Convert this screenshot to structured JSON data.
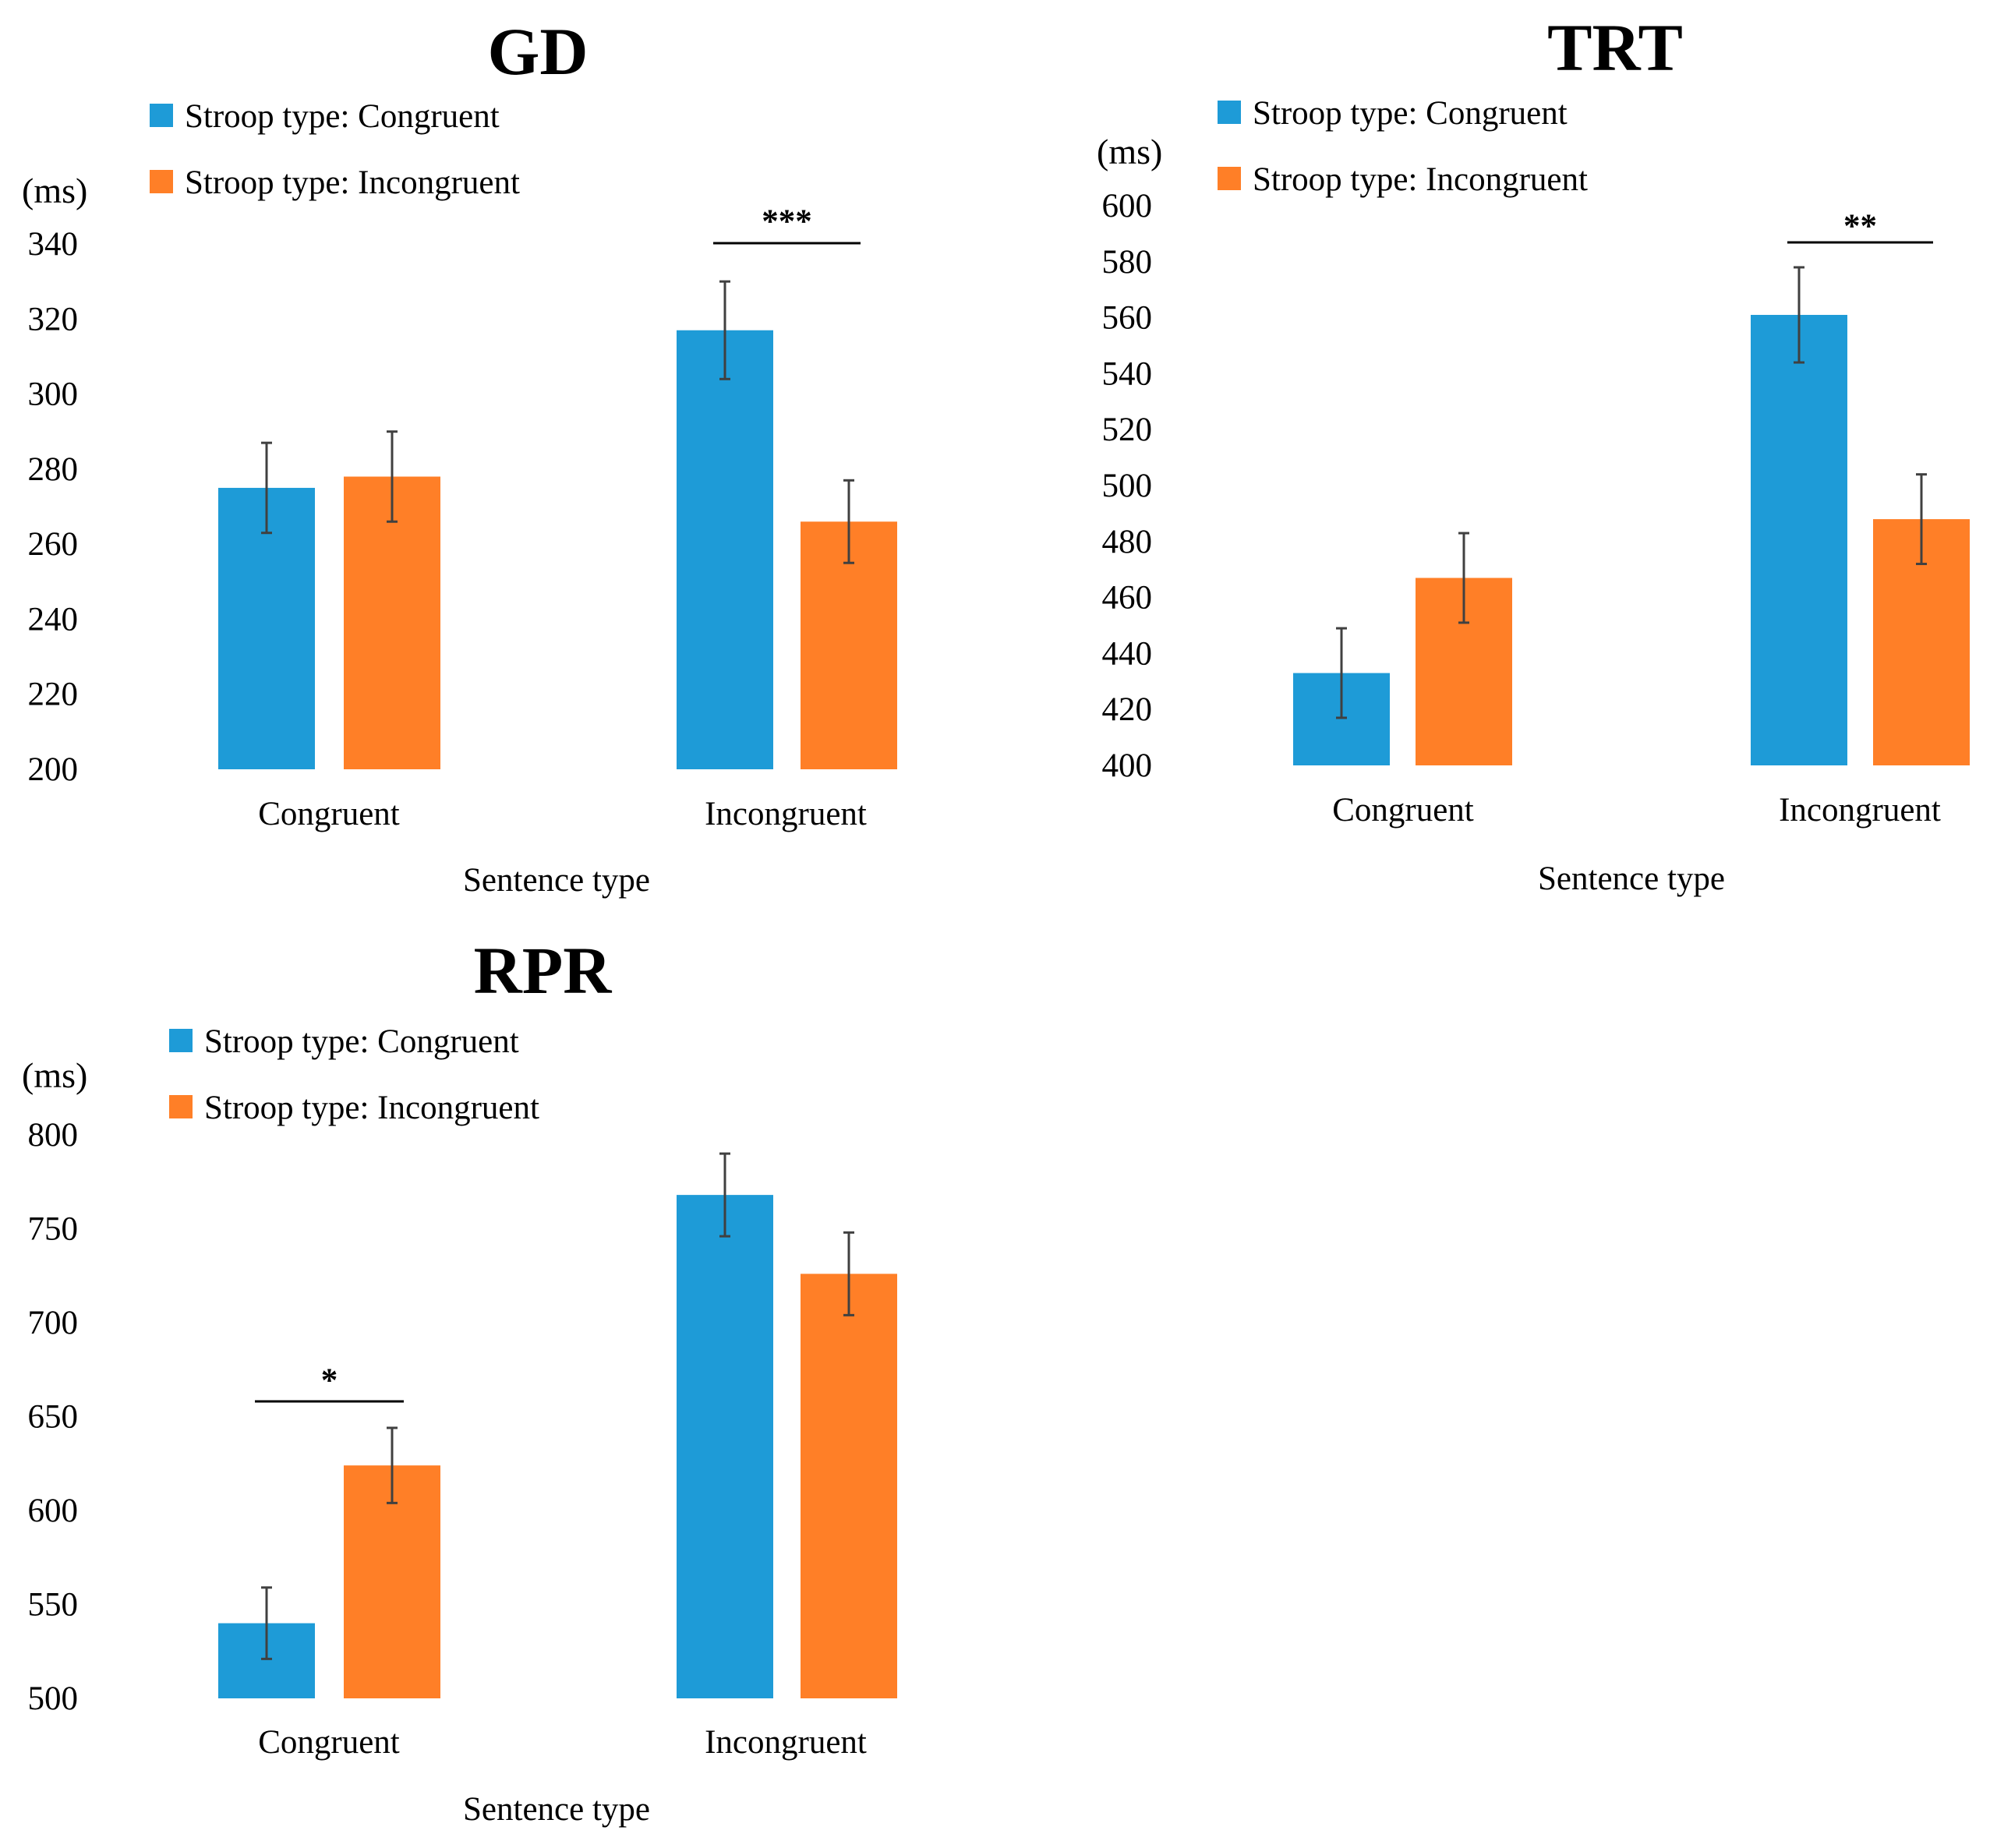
{
  "chart_data": [
    {
      "type": "bar",
      "title": "GD",
      "unit_label": "(ms)",
      "xlabel": "Sentence type",
      "ylabel": "(ms)",
      "categories": [
        "Congruent",
        "Incongruent"
      ],
      "ylim": [
        200,
        340
      ],
      "yticks": [
        200,
        220,
        240,
        260,
        280,
        300,
        320,
        340
      ],
      "series": [
        {
          "name": "Stroop type: Congruent",
          "color": "#1E9BD7",
          "values": [
            275,
            317
          ],
          "errors": [
            12,
            13
          ]
        },
        {
          "name": "Stroop type: Incongruent",
          "color": "#FF7F27",
          "values": [
            278,
            266
          ],
          "errors": [
            12,
            11
          ]
        }
      ],
      "significance": [
        {
          "category_index": 1,
          "label": "***"
        }
      ],
      "grid": false,
      "legend_position": "top-left"
    },
    {
      "type": "bar",
      "title": "TRT",
      "unit_label": "(ms)",
      "xlabel": "Sentence type",
      "ylabel": "(ms)",
      "categories": [
        "Congruent",
        "Incongruent"
      ],
      "ylim": [
        400,
        600
      ],
      "yticks": [
        400,
        420,
        440,
        460,
        480,
        500,
        520,
        540,
        560,
        580,
        600
      ],
      "series": [
        {
          "name": "Stroop type: Congruent",
          "color": "#1E9BD7",
          "values": [
            433,
            561
          ],
          "errors": [
            16,
            17
          ]
        },
        {
          "name": "Stroop type: Incongruent",
          "color": "#FF7F27",
          "values": [
            467,
            488
          ],
          "errors": [
            16,
            16
          ]
        }
      ],
      "significance": [
        {
          "category_index": 1,
          "label": "**"
        }
      ],
      "grid": false,
      "legend_position": "top-left"
    },
    {
      "type": "bar",
      "title": "RPR",
      "unit_label": "(ms)",
      "xlabel": "Sentence type",
      "ylabel": "(ms)",
      "categories": [
        "Congruent",
        "Incongruent"
      ],
      "ylim": [
        500,
        800
      ],
      "yticks": [
        500,
        550,
        600,
        650,
        700,
        750,
        800
      ],
      "series": [
        {
          "name": "Stroop type: Congruent",
          "color": "#1E9BD7",
          "values": [
            540,
            768
          ],
          "errors": [
            19,
            22
          ]
        },
        {
          "name": "Stroop type: Incongruent",
          "color": "#FF7F27",
          "values": [
            624,
            726
          ],
          "errors": [
            20,
            22
          ]
        }
      ],
      "significance": [
        {
          "category_index": 0,
          "label": "*"
        }
      ],
      "grid": false,
      "legend_position": "top-left"
    }
  ]
}
